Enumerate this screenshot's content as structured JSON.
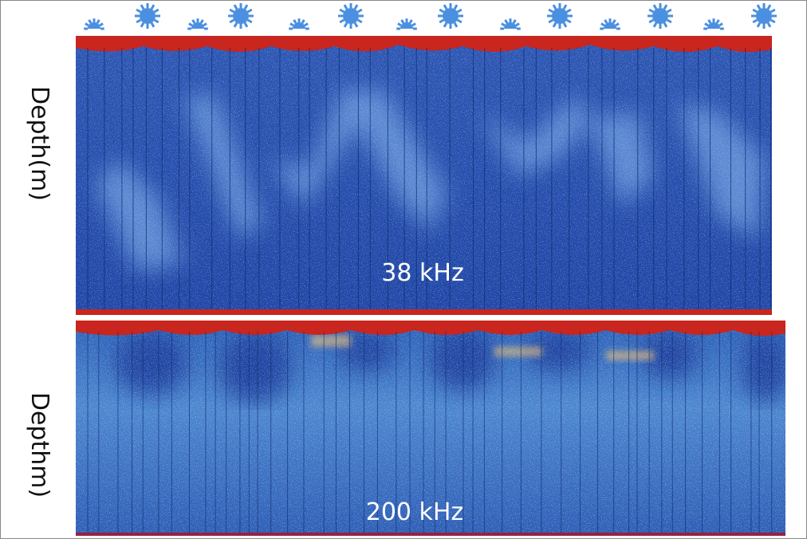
{
  "panels": [
    {
      "y_label": "Depth(m)",
      "frequency": "38 kHz"
    },
    {
      "y_label": "Depthm)",
      "frequency": "200 kHz"
    }
  ]
}
